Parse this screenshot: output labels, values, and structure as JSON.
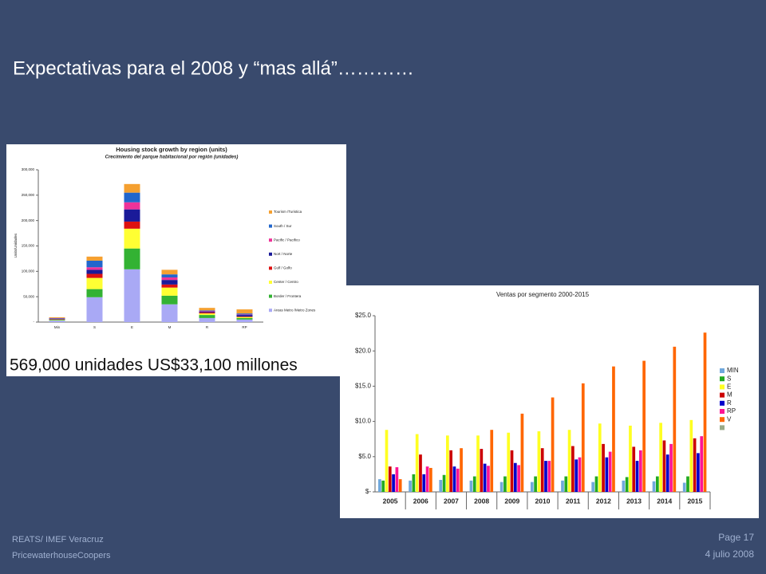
{
  "title": "Expectativas para el 2008 y “mas allá”…………",
  "footer": {
    "left": [
      "REATS/ IMEF Veracruz",
      "PricewaterhouseCoopers"
    ],
    "right": [
      "Page 17",
      "4 julio 2008"
    ]
  },
  "caption": "569,000 unidades US$33,100 millones",
  "chart_data": [
    {
      "type": "stacked-bar",
      "title": "Housing stock growth by region (units)",
      "subtitle": "Crecimiento del parque habitacional por región (unidades)",
      "y_label": "Units/Unidades",
      "categories": [
        "Min",
        "S",
        "E",
        "M",
        "R",
        "RP"
      ],
      "ylim": [
        0,
        300000
      ],
      "yticks": [
        {
          "value": 0,
          "label": "-"
        },
        {
          "value": 50000,
          "label": "50,000"
        },
        {
          "value": 100000,
          "label": "100,000"
        },
        {
          "value": 150000,
          "label": "150,000"
        },
        {
          "value": 200000,
          "label": "200,000"
        },
        {
          "value": 250000,
          "label": "250,000"
        },
        {
          "value": 300000,
          "label": "300,000"
        }
      ],
      "legend": "right",
      "series": [
        {
          "name": "Areas Metro /Metro Zones",
          "color": "#a9a9f5",
          "values": [
            3000,
            49000,
            104000,
            35000,
            8000,
            5000
          ]
        },
        {
          "name": "Border / Frontera",
          "color": "#33b233",
          "values": [
            1000,
            16000,
            41000,
            17000,
            6000,
            3000
          ]
        },
        {
          "name": "Center / Centro",
          "color": "#ffff33",
          "values": [
            1000,
            22000,
            39000,
            16000,
            3000,
            2000
          ]
        },
        {
          "name": "Gulf / Golfo",
          "color": "#dd1111",
          "values": [
            500,
            8000,
            14000,
            6000,
            2000,
            1000
          ]
        },
        {
          "name": "Nort / Norte",
          "color": "#1a1a99",
          "values": [
            1000,
            8000,
            24000,
            9000,
            2000,
            3000
          ]
        },
        {
          "name": "Pacific / Pacifico",
          "color": "#ee3399",
          "values": [
            500,
            5000,
            14000,
            5000,
            1000,
            1000
          ]
        },
        {
          "name": "South / Sur",
          "color": "#2266cc",
          "values": [
            1000,
            13000,
            19000,
            6000,
            1000,
            2000
          ]
        },
        {
          "name": "Tourism /Turistica",
          "color": "#f5a030",
          "values": [
            1500,
            8000,
            17000,
            9000,
            5000,
            8000
          ]
        }
      ]
    },
    {
      "type": "grouped-bar",
      "title": "Ventas por segmento 2000-2015",
      "categories": [
        "2005",
        "2006",
        "2007",
        "2008",
        "2009",
        "2010",
        "2011",
        "2012",
        "2013",
        "2014",
        "2015"
      ],
      "ylim": [
        0,
        25
      ],
      "yticks": [
        {
          "value": 0,
          "label": "$-"
        },
        {
          "value": 5,
          "label": "$5.0"
        },
        {
          "value": 10,
          "label": "$10.0"
        },
        {
          "value": 15,
          "label": "$15.0"
        },
        {
          "value": 20,
          "label": "$20.0"
        },
        {
          "value": 25,
          "label": "$25.0"
        }
      ],
      "legend": "right",
      "series": [
        {
          "name": "MIN",
          "color": "#6fa8dc",
          "values": [
            1.8,
            1.6,
            1.7,
            1.6,
            1.4,
            1.4,
            1.6,
            1.4,
            1.6,
            1.5,
            1.3
          ]
        },
        {
          "name": "S",
          "color": "#22aa22",
          "values": [
            1.6,
            2.5,
            2.4,
            2.2,
            2.2,
            2.2,
            2.2,
            2.2,
            2.1,
            2.2,
            2.2
          ]
        },
        {
          "name": "E",
          "color": "#ffff22",
          "values": [
            8.8,
            8.2,
            8.0,
            8.0,
            8.4,
            8.6,
            8.8,
            9.7,
            9.4,
            9.8,
            10.2
          ]
        },
        {
          "name": "M",
          "color": "#cc0000",
          "values": [
            3.6,
            5.3,
            5.9,
            6.1,
            5.9,
            6.2,
            6.5,
            6.8,
            6.4,
            7.3,
            7.6
          ]
        },
        {
          "name": "R",
          "color": "#0000cc",
          "values": [
            2.5,
            2.5,
            3.6,
            4.0,
            4.1,
            4.4,
            4.6,
            4.9,
            4.4,
            5.3,
            5.5
          ]
        },
        {
          "name": "RP",
          "color": "#ff1493",
          "values": [
            3.5,
            3.6,
            3.3,
            3.7,
            3.8,
            4.4,
            4.9,
            5.7,
            5.9,
            6.8,
            7.9
          ]
        },
        {
          "name": "V",
          "color": "#ff6600",
          "values": [
            1.8,
            3.4,
            6.2,
            8.8,
            11.1,
            13.4,
            15.4,
            17.8,
            18.6,
            20.6,
            22.6
          ]
        }
      ]
    }
  ]
}
